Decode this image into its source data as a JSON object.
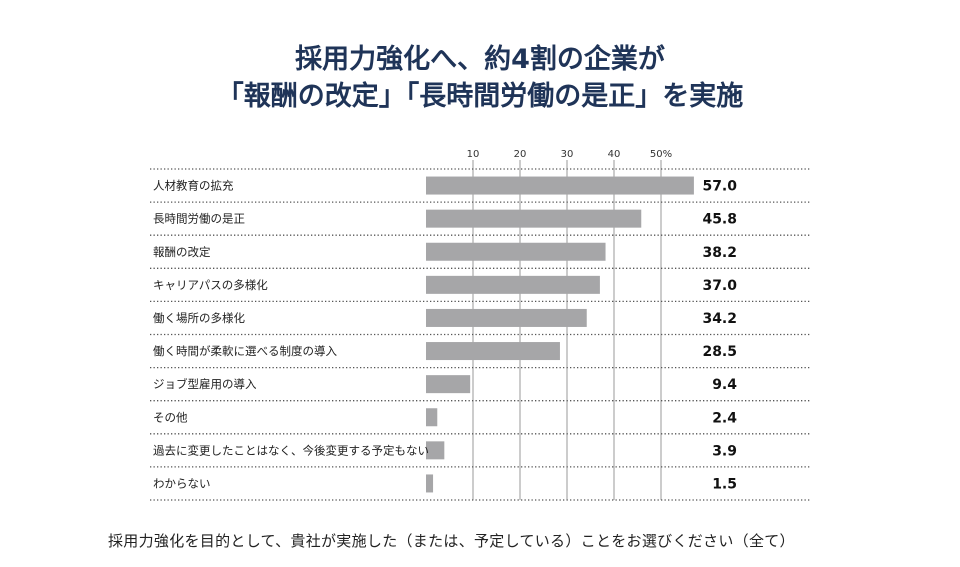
{
  "title_lines": [
    "採用力強化へ、約4割の企業が",
    "「報酬の改定」「長時間労働の是正」を実施"
  ],
  "caption": "採用力強化を目的として、貴社が実施した（または、予定している）ことをお選びください（全て）",
  "chart_data": {
    "type": "bar",
    "orientation": "horizontal",
    "categories": [
      "人材教育の拡充",
      "長時間労働の是正",
      "報酬の改定",
      "キャリアパスの多様化",
      "働く場所の多様化",
      "働く時間が柔軟に選べる制度の導入",
      "ジョブ型雇用の導入",
      "その他",
      "過去に変更したことはなく、今後変更する予定もない",
      "わからない"
    ],
    "values": [
      57.0,
      45.8,
      38.2,
      37.0,
      34.2,
      28.5,
      9.4,
      2.4,
      3.9,
      1.5
    ],
    "value_labels": [
      "57.0",
      "45.8",
      "38.2",
      "37.0",
      "34.2",
      "28.5",
      "9.4",
      "2.4",
      "3.9",
      "1.5"
    ],
    "ticks": [
      10,
      20,
      30,
      40,
      50
    ],
    "tick_labels": [
      "10",
      "20",
      "30",
      "40",
      "50%"
    ],
    "xlim": [
      0,
      57
    ],
    "grid": true,
    "bar_color": "#a6a6a8",
    "grid_color": "#9a9a9a"
  }
}
